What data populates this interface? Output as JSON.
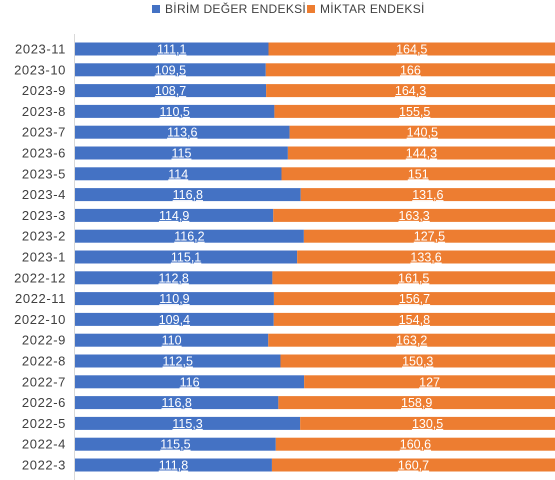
{
  "chart_data": {
    "type": "bar",
    "orientation": "horizontal",
    "stacked": "100%",
    "categories": [
      "2023-11",
      "2023-10",
      "2023-9",
      "2023-8",
      "2023-7",
      "2023-6",
      "2023-5",
      "2023-4",
      "2023-3",
      "2023-2",
      "2023-1",
      "2022-12",
      "2022-11",
      "2022-10",
      "2022-9",
      "2022-8",
      "2022-7",
      "2022-6",
      "2022-5",
      "2022-4",
      "2022-3"
    ],
    "series": [
      {
        "name": "BİRİM DEĞER ENDEKSİ",
        "color": "#4472C4",
        "values": [
          111.1,
          109.5,
          108.7,
          110.5,
          113.6,
          115,
          114,
          116.8,
          114.9,
          116.2,
          115.1,
          112.8,
          110.9,
          109.4,
          110,
          112.5,
          116,
          116.8,
          115.3,
          115.5,
          111.8
        ],
        "labels": [
          "111,1",
          "109,5",
          "108,7",
          "110,5",
          "113,6",
          "115",
          "114",
          "116,8",
          "114,9",
          "116,2",
          "115,1",
          "112,8",
          "110,9",
          "109,4",
          "110",
          "112,5",
          "116",
          "116,8",
          "115,3",
          "115,5",
          "111,8"
        ]
      },
      {
        "name": "MİKTAR ENDEKSİ",
        "color": "#ED7D31",
        "values": [
          164.5,
          166,
          164.3,
          155.5,
          140.5,
          144.3,
          151,
          131.6,
          163.3,
          127.5,
          133.6,
          161.5,
          156.7,
          154.8,
          163.2,
          150.3,
          127,
          158.9,
          130.5,
          160.6,
          160.7
        ],
        "labels": [
          "164,5",
          "166",
          "164,3",
          "155,5",
          "140,5",
          "144,3",
          "151",
          "131,6",
          "163,3",
          "127,5",
          "133,6",
          "161,5",
          "156,7",
          "154,8",
          "163,2",
          "150,3",
          "127",
          "158,9",
          "130,5",
          "160,6",
          "160,7"
        ]
      }
    ],
    "legend_position": "top",
    "grid": false
  },
  "legend": {
    "items": [
      {
        "label": "BİRİM DEĞER ENDEKSİ",
        "color": "#4472C4"
      },
      {
        "label": "MİKTAR ENDEKSİ",
        "color": "#ED7D31"
      }
    ]
  }
}
